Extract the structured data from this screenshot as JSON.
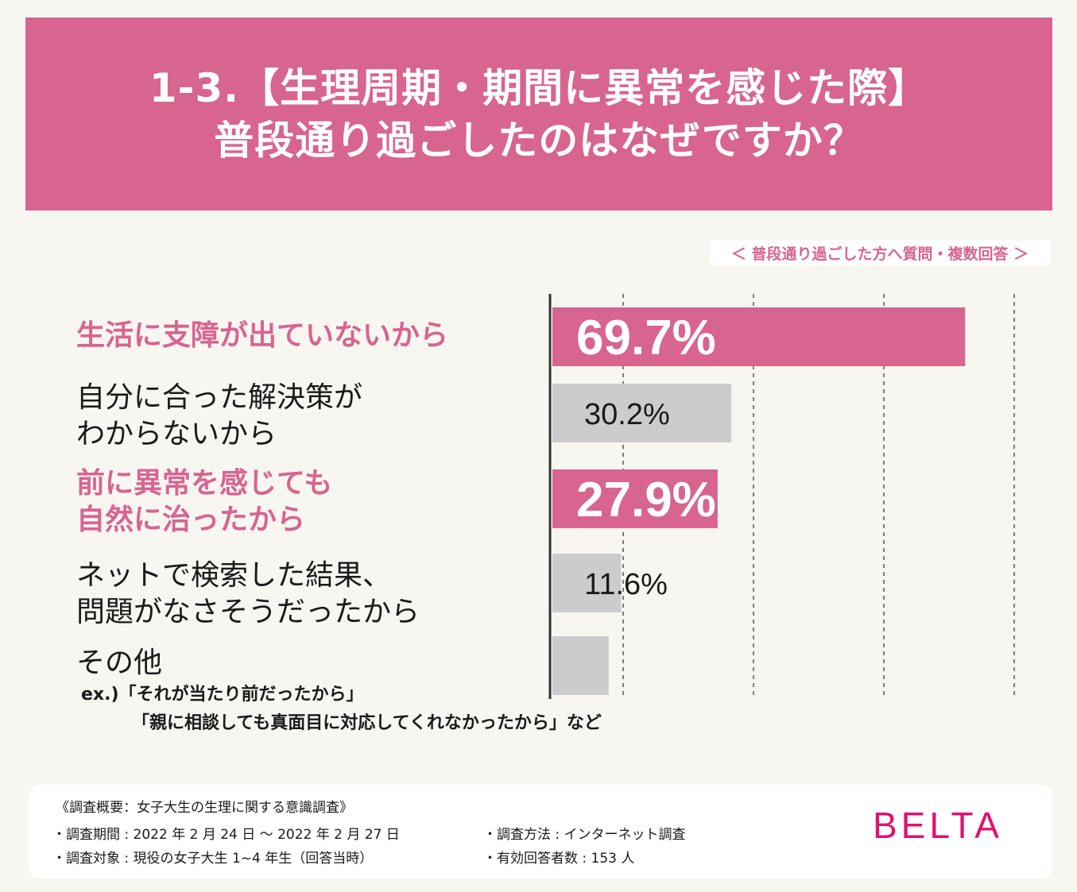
{
  "header": {
    "line1": "1-3.【生理周期・期間に異常を感じた際】",
    "line2": "普段通り過ごしたのはなぜですか？"
  },
  "subnote": "＜ 普段通り過ごした方へ質問・複数回答 ＞",
  "chart_data": {
    "type": "bar",
    "orientation": "horizontal",
    "title": "1-3.【生理周期・期間に異常を感じた際】普段通り過ごしたのはなぜですか？",
    "categories": [
      "生活に支障が出ていないから",
      "自分に合った解決策がわからないから",
      "前に異常を感じても自然に治ったから",
      "ネットで検索した結果、問題がなさそうだったから",
      "その他"
    ],
    "values": [
      69.7,
      30.2,
      27.9,
      11.6,
      9.5
    ],
    "value_labels": [
      "69.7%",
      "30.2%",
      "27.9%",
      "11.6%",
      ""
    ],
    "highlight": [
      true,
      false,
      true,
      false,
      false
    ],
    "xlim": [
      0,
      80
    ],
    "grid": true,
    "colors": {
      "highlight": "#d86490",
      "normal": "#cccccc"
    }
  },
  "labels": {
    "item1": [
      "生活に支障が出ていないから"
    ],
    "item2": [
      "自分に合った解決策が",
      "わからないから"
    ],
    "item3": [
      "前に異常を感じても",
      "自然に治ったから"
    ],
    "item4": [
      "ネットで検索した結果、",
      "問題がなさそうだったから"
    ],
    "item5": [
      "その他"
    ],
    "example1": "ex.)「それが当たり前だったから」",
    "example2": "「親に相談しても真面目に対応してくれなかったから」など"
  },
  "footer": {
    "title": "《調査概要：女子大生の生理に関する意識調査》",
    "period": "・調査期間 : 2022 年 2 月 24 日 〜 2022 年 2 月 27 日",
    "target": "・調査対象 : 現役の女子大生 1~4 年生（回答当時）",
    "method": "・調査方法 : インターネット調査",
    "respondents": "・有効回答者数 : 153 人"
  },
  "brand": "BELTA"
}
